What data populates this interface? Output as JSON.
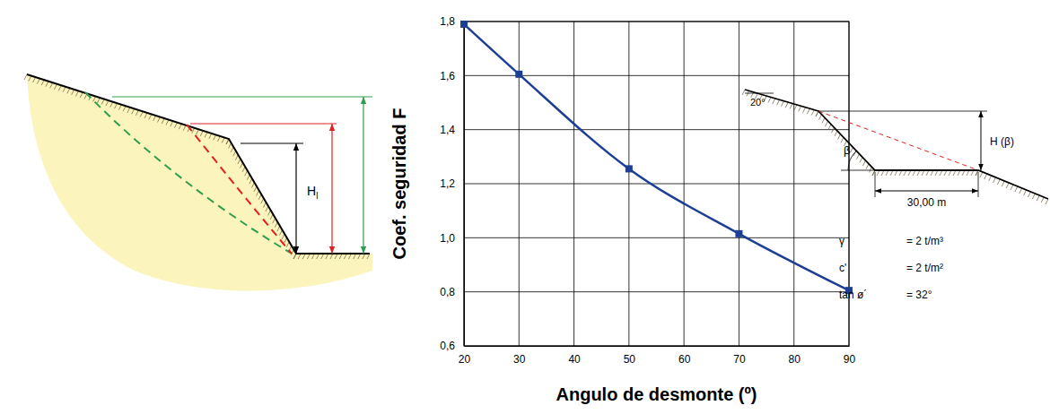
{
  "chart_data": {
    "type": "line",
    "x": [
      20,
      30,
      50,
      70,
      90
    ],
    "values": [
      1.79,
      1.605,
      1.255,
      1.015,
      0.805
    ],
    "color": "#1c3f94",
    "marker": "square",
    "line_style": "solid",
    "x_label": "Angulo de desmonte (º)",
    "y_label": "Coef. seguridad F",
    "xlim": [
      20,
      90
    ],
    "xticks": [
      20,
      30,
      40,
      50,
      60,
      70,
      80,
      90
    ],
    "ylim": [
      0.6,
      1.8
    ],
    "yticks": [
      {
        "value": 0.6,
        "label": "0,6"
      },
      {
        "value": 0.8,
        "label": "0,8"
      },
      {
        "value": 1.0,
        "label": "1,0"
      },
      {
        "value": 1.2,
        "label": "1,2"
      },
      {
        "value": 1.4,
        "label": "1,4"
      },
      {
        "value": 1.6,
        "label": "1,6"
      },
      {
        "value": 1.8,
        "label": "1,8"
      }
    ],
    "grid": true
  },
  "left_diagram": {
    "height_label": {
      "text": "H",
      "subscript": "l"
    }
  },
  "right_diagram": {
    "angle_top": "20°",
    "angle_slope": "β",
    "height_label": "H (β)",
    "width_label": "30,00 m",
    "parameters": [
      {
        "symbol": "γ",
        "value": "= 2 t/m³"
      },
      {
        "symbol": "c'",
        "value": "= 2 t/m²"
      },
      {
        "symbol": "tan ø´",
        "value": "= 32°"
      }
    ]
  }
}
